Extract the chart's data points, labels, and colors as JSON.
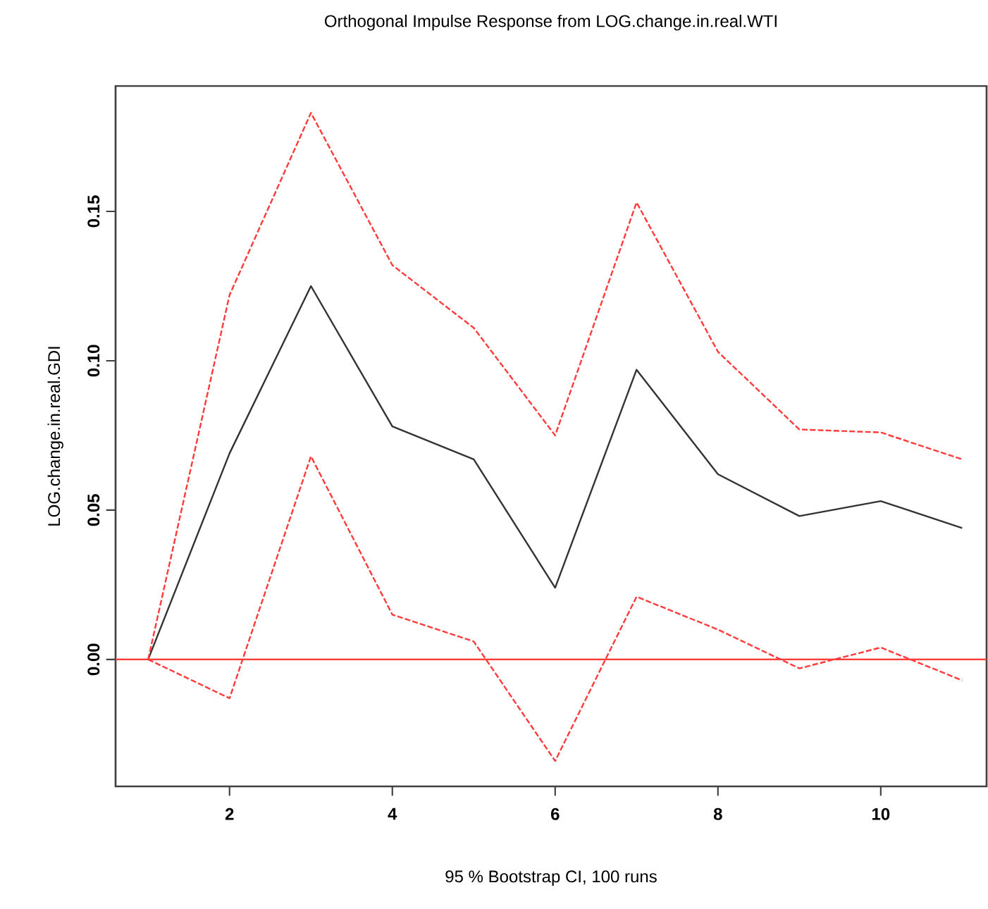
{
  "chart_data": {
    "type": "line",
    "title": "Orthogonal Impulse Response from LOG.change.in.real.WTI",
    "xlabel": "95 % Bootstrap CI, 100 runs",
    "ylabel": "LOG.change.in.real.GDI",
    "x": [
      1,
      2,
      3,
      4,
      5,
      6,
      7,
      8,
      9,
      10,
      11
    ],
    "series": [
      {
        "color": "#333333",
        "line_style": "solid",
        "values": [
          0,
          0.069,
          0.125,
          0.078,
          0.067,
          0.024,
          0.097,
          0.062,
          0.048,
          0.053,
          0.044
        ]
      },
      {
        "color": "#ff3b3b",
        "line_style": "dashed",
        "values": [
          0,
          0.122,
          0.183,
          0.132,
          0.111,
          0.075,
          0.153,
          0.103,
          0.077,
          0.076,
          0.067
        ]
      },
      {
        "color": "#ff3b3b",
        "line_style": "dashed",
        "values": [
          0,
          -0.013,
          0.068,
          0.015,
          0.006,
          -0.034,
          0.021,
          0.01,
          -0.003,
          0.004,
          -0.007
        ]
      }
    ],
    "xlim": [
      0.6,
      11.3
    ],
    "ylim": [
      -0.0425,
      0.192
    ],
    "xticks": [
      2,
      4,
      6,
      8,
      10
    ],
    "yticks": [
      {
        "value": 0,
        "label": "0.00"
      },
      {
        "value": 0.05,
        "label": "0.05"
      },
      {
        "value": 0.1,
        "label": "0.10"
      },
      {
        "value": 0.15,
        "label": "0.15"
      }
    ],
    "ref_lines": [
      {
        "axis": "y",
        "value": 0,
        "color": "#ff3b3b"
      }
    ],
    "grid": false,
    "marker": "none"
  }
}
